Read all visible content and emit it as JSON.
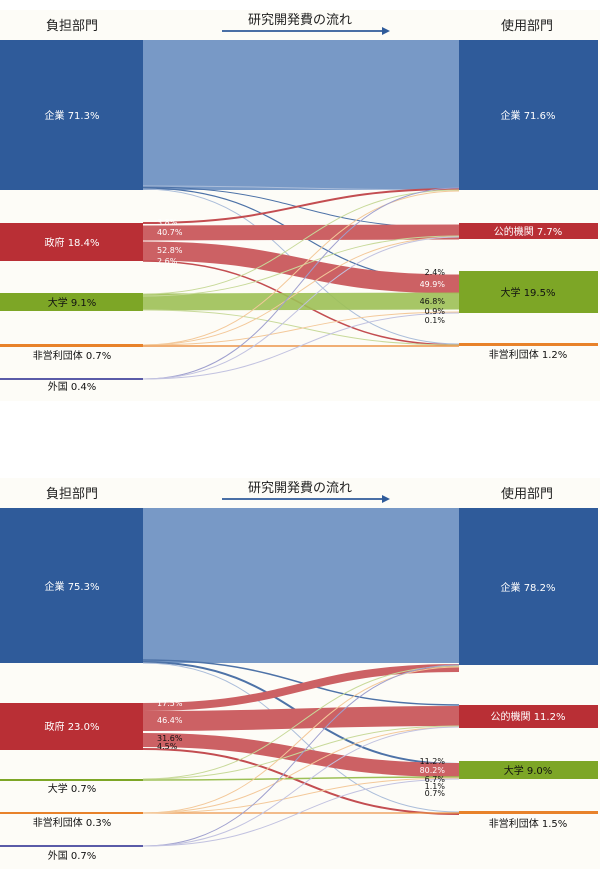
{
  "colors": {
    "enterprise": "#2F5B9A",
    "government": "#B92F35",
    "university": "#7DA626",
    "nonprofit": "#E8822A",
    "foreign": "#5A5BA8",
    "arrow": "#2F5B9A"
  },
  "panels": [
    {
      "header_left": "負担部門",
      "header_middle": "研究開発費の流れ",
      "header_right": "使用部門",
      "chart_data": {
        "type": "sankey",
        "sources": [
          {
            "label": "企業 71.3%"
          },
          {
            "label": "政府 18.4%"
          },
          {
            "label": "大学 9.1%"
          },
          {
            "label": "非営利団体 0.7%"
          },
          {
            "label": "外国 0.4%"
          }
        ],
        "targets": [
          {
            "label": "企業 71.6%"
          },
          {
            "label": "公的機関 7.7%"
          },
          {
            "label": "大学 19.5%"
          },
          {
            "label": "非営利団体 1.2%"
          }
        ],
        "government_source_labels": [
          "3.8%",
          "40.7%",
          "52.8%",
          "2.6%"
        ],
        "university_target_labels": [
          "2.4%",
          "49.9%",
          "46.8%",
          "0.9%",
          "0.1%"
        ]
      }
    },
    {
      "header_left": "負担部門",
      "header_middle": "研究開発費の流れ",
      "header_right": "使用部門",
      "chart_data": {
        "type": "sankey",
        "sources": [
          {
            "label": "企業 75.3%"
          },
          {
            "label": "政府 23.0%"
          },
          {
            "label": "大学 0.7%"
          },
          {
            "label": "非営利団体 0.3%"
          },
          {
            "label": "外国 0.7%"
          }
        ],
        "targets": [
          {
            "label": "企業 78.2%"
          },
          {
            "label": "公的機関 11.2%"
          },
          {
            "label": "大学 9.0%"
          },
          {
            "label": "非営利団体 1.5%"
          }
        ],
        "government_source_labels": [
          "17.5%",
          "46.4%",
          "31.6%",
          "4.5%"
        ],
        "university_target_labels": [
          "11.2%",
          "80.2%",
          "6.7%",
          "1.1%",
          "0.7%"
        ]
      }
    }
  ]
}
